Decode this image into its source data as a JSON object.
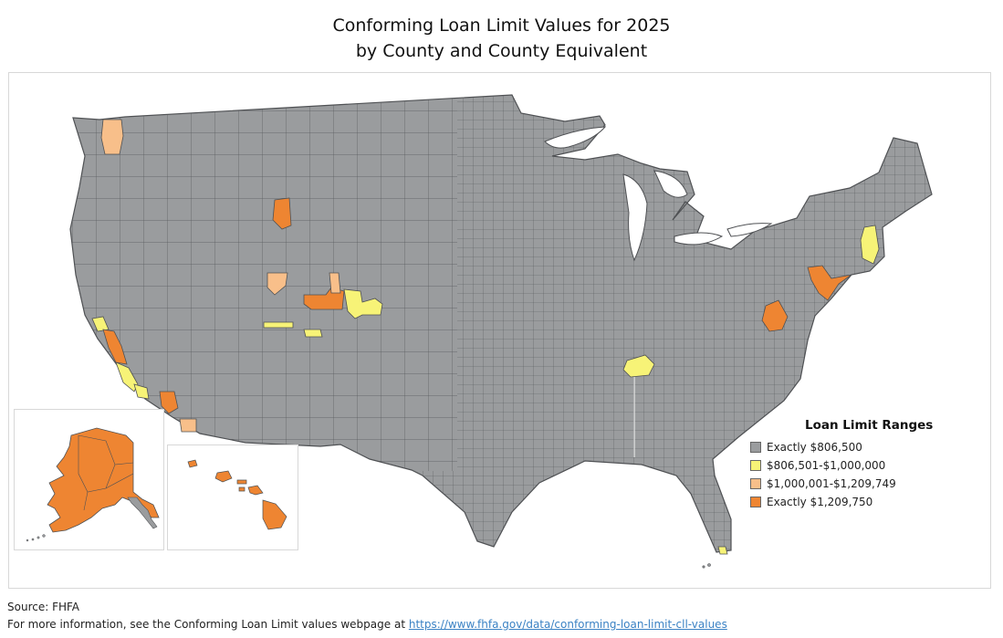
{
  "title_line1": "Conforming Loan Limit Values for 2025",
  "title_line2": "by County and County Equivalent",
  "legend": {
    "title": "Loan Limit Ranges",
    "items": [
      {
        "label": "Exactly $806,500",
        "color": "#9a9c9e"
      },
      {
        "label": "$806,501-$1,000,000",
        "color": "#f7f377"
      },
      {
        "label": "$1,000,001-$1,209,749",
        "color": "#f8bf8a"
      },
      {
        "label": "Exactly $1,209,750",
        "color": "#ee8532"
      }
    ]
  },
  "footer": {
    "source": "Source: FHFA",
    "info_prefix": "For more information, see the Conforming Loan Limit values webpage at ",
    "link": "https://www.fhfa.gov/data/conforming-loan-limit-cll-values"
  },
  "colors": {
    "base": "#9a9c9e",
    "border": "#4f5154",
    "yellow": "#f7f377",
    "peach": "#f8bf8a",
    "orange": "#ee8532"
  }
}
